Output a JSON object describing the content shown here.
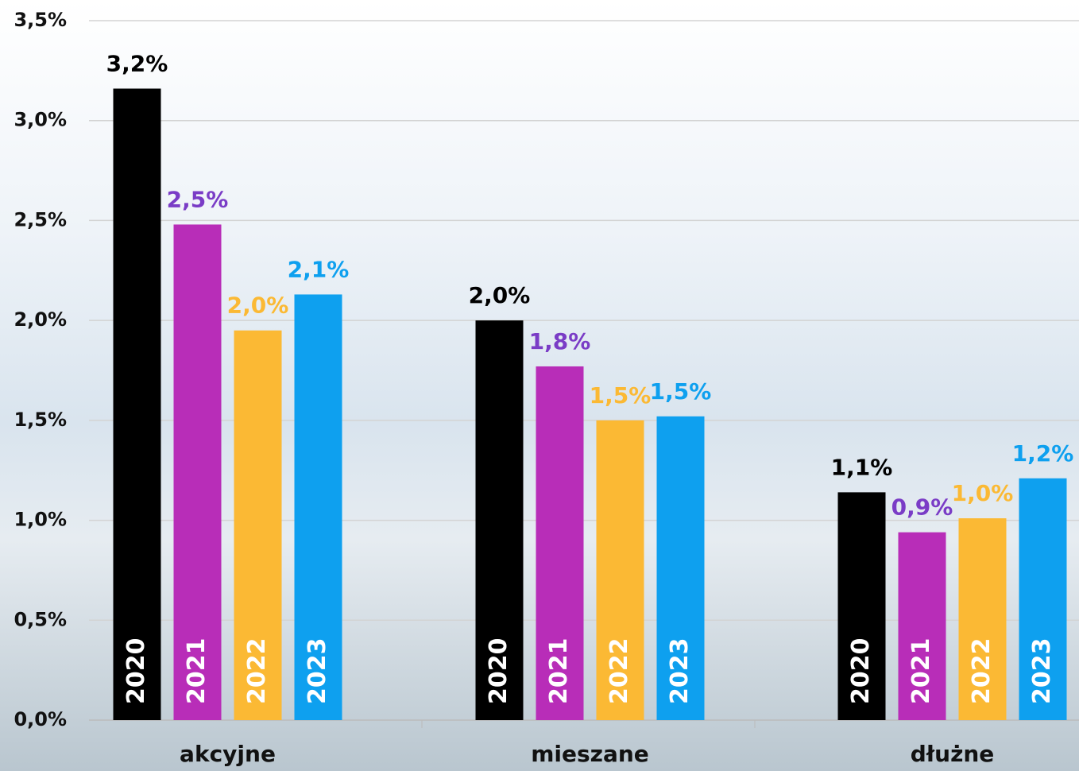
{
  "chart_data": {
    "type": "bar",
    "categories": [
      "akcyjne",
      "mieszane",
      "dłużne"
    ],
    "series": [
      {
        "name": "2020",
        "color": "#000000",
        "label_color": "#000000",
        "values": [
          3.16,
          2.0,
          1.14
        ],
        "value_labels": [
          "3,2%",
          "2,0%",
          "1,1%"
        ]
      },
      {
        "name": "2021",
        "color": "#b82db8",
        "label_color": "#7a3cc6",
        "values": [
          2.48,
          1.77,
          0.94
        ],
        "value_labels": [
          "2,5%",
          "1,8%",
          "0,9%"
        ]
      },
      {
        "name": "2022",
        "color": "#fbb934",
        "label_color": "#fbb934",
        "values": [
          1.95,
          1.5,
          1.01
        ],
        "value_labels": [
          "2,0%",
          "1,5%",
          "1,0%"
        ]
      },
      {
        "name": "2023",
        "color": "#0ea0ef",
        "label_color": "#0ea0ef",
        "values": [
          2.13,
          1.52,
          1.21
        ],
        "value_labels": [
          "2,1%",
          "1,5%",
          "1,2%"
        ]
      }
    ],
    "ylim": [
      0,
      3.5
    ],
    "yticks": [
      {
        "value": 0,
        "label": "0,0%"
      },
      {
        "value": 0.5,
        "label": "0,5%"
      },
      {
        "value": 1,
        "label": "1,0%"
      },
      {
        "value": 1.5,
        "label": "1,5%"
      },
      {
        "value": 2,
        "label": "2,0%"
      },
      {
        "value": 2.5,
        "label": "2,5%"
      },
      {
        "value": 3,
        "label": "3,0%"
      },
      {
        "value": 3.5,
        "label": "3,5%"
      }
    ],
    "grid": true
  }
}
